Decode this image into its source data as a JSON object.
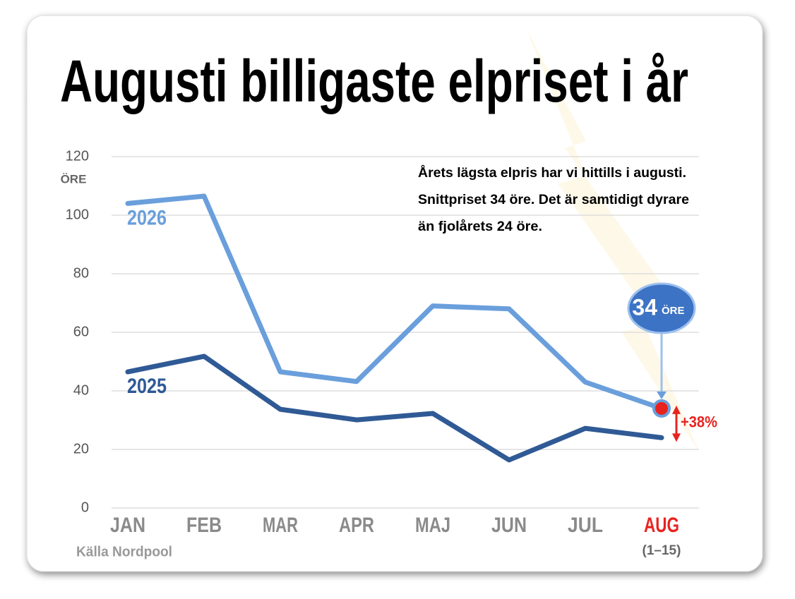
{
  "chart_data": {
    "type": "line",
    "title": "Augusti billigaste elpriset i år",
    "note": [
      "Årets lägsta elpris har vi hittills i augusti.",
      "Snittpriset 34 öre. Det är samtidigt dyrare",
      "än fjolårets 24 öre."
    ],
    "y_unit": "ÖRE",
    "bubble_value": "34",
    "bubble_unit": "ÖRE",
    "change": "+38%",
    "period": "(1–15)",
    "source": "Källa Nordpool",
    "categories": [
      "JAN",
      "FEB",
      "MAR",
      "APR",
      "MAJ",
      "JUN",
      "JUL",
      "AUG"
    ],
    "highlight": {
      "category": "AUG",
      "color": "#e8231f"
    },
    "series": [
      {
        "name": "2026",
        "color": "#6a9fdc",
        "values": [
          104,
          106.5,
          46.5,
          43.2,
          69,
          68,
          43,
          34
        ]
      },
      {
        "name": "2025",
        "color": "#2f5a95",
        "values": [
          46.5,
          51.8,
          33.7,
          30.1,
          32.3,
          16.4,
          27.2,
          24
        ]
      }
    ],
    "ylim": [
      0,
      120
    ],
    "yticks": [
      0,
      20,
      40,
      60,
      80,
      100,
      120
    ],
    "grid": true
  }
}
